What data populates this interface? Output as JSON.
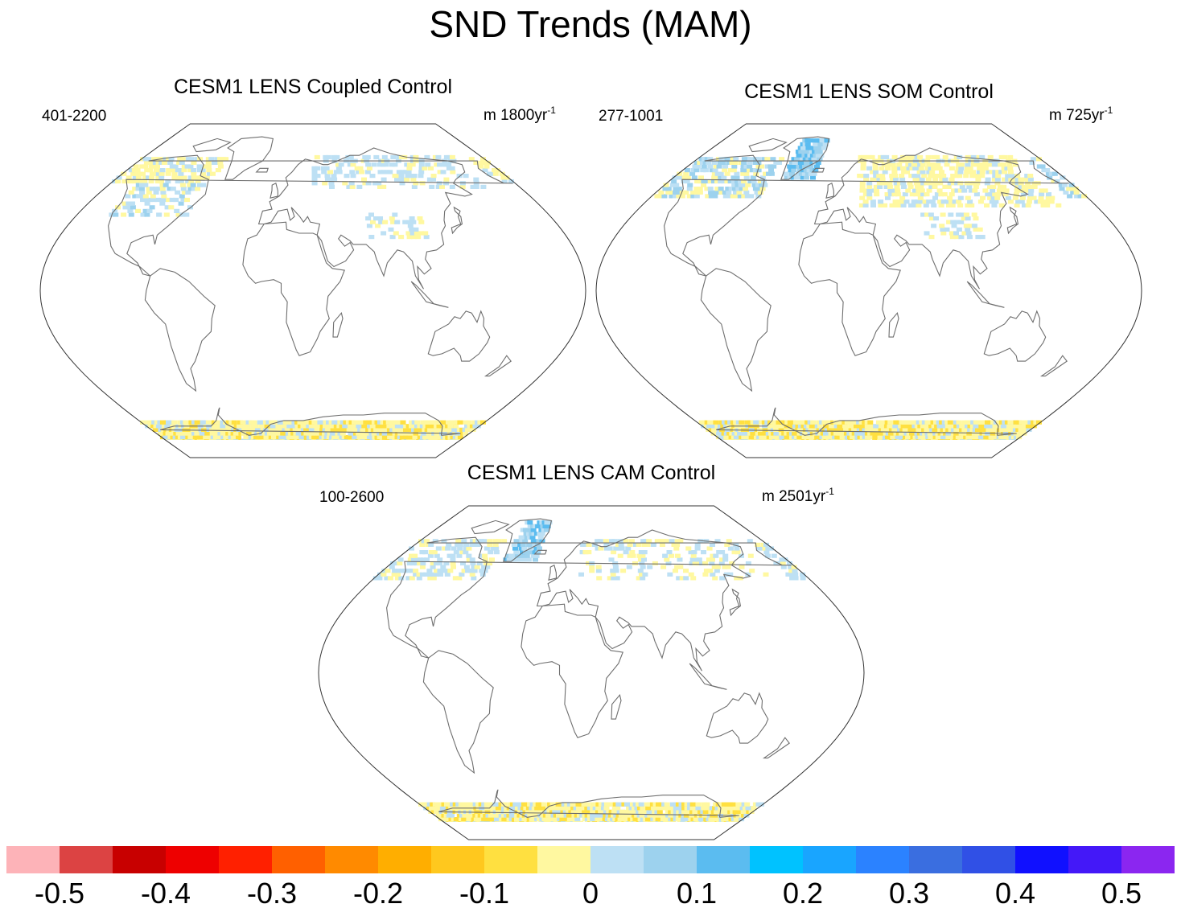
{
  "title": "SND Trends (MAM)",
  "panels": [
    {
      "id": "coupled",
      "title": "CESM1 LENS Coupled Control",
      "left_label": "401-2200",
      "right_label": "m 1800yr",
      "right_sup": "-1"
    },
    {
      "id": "som",
      "title": "CESM1 LENS SOM Control",
      "left_label": "277-1001",
      "right_label": "m 725yr",
      "right_sup": "-1"
    },
    {
      "id": "cam",
      "title": "CESM1 LENS CAM Control",
      "left_label": "100-2600",
      "right_label": "m 2501yr",
      "right_sup": "-1"
    }
  ],
  "colorbar": {
    "colors": [
      "#fdb3b8",
      "#dc4343",
      "#c80000",
      "#ee0000",
      "#ff2000",
      "#ff6000",
      "#ff8a00",
      "#ffae00",
      "#ffc81e",
      "#ffe040",
      "#fff8a0",
      "#bde0f4",
      "#9dd2ee",
      "#5bbcf0",
      "#00c2ff",
      "#19a5ff",
      "#2b82ff",
      "#3a6ee0",
      "#3050e6",
      "#1010ff",
      "#4418f8",
      "#8b26f0"
    ],
    "labels": [
      "-0.5",
      "-0.4",
      "-0.3",
      "-0.2",
      "-0.1",
      "0",
      "0.1",
      "0.2",
      "0.3",
      "0.4",
      "0.5"
    ],
    "min": -0.55,
    "max": 0.55
  }
}
